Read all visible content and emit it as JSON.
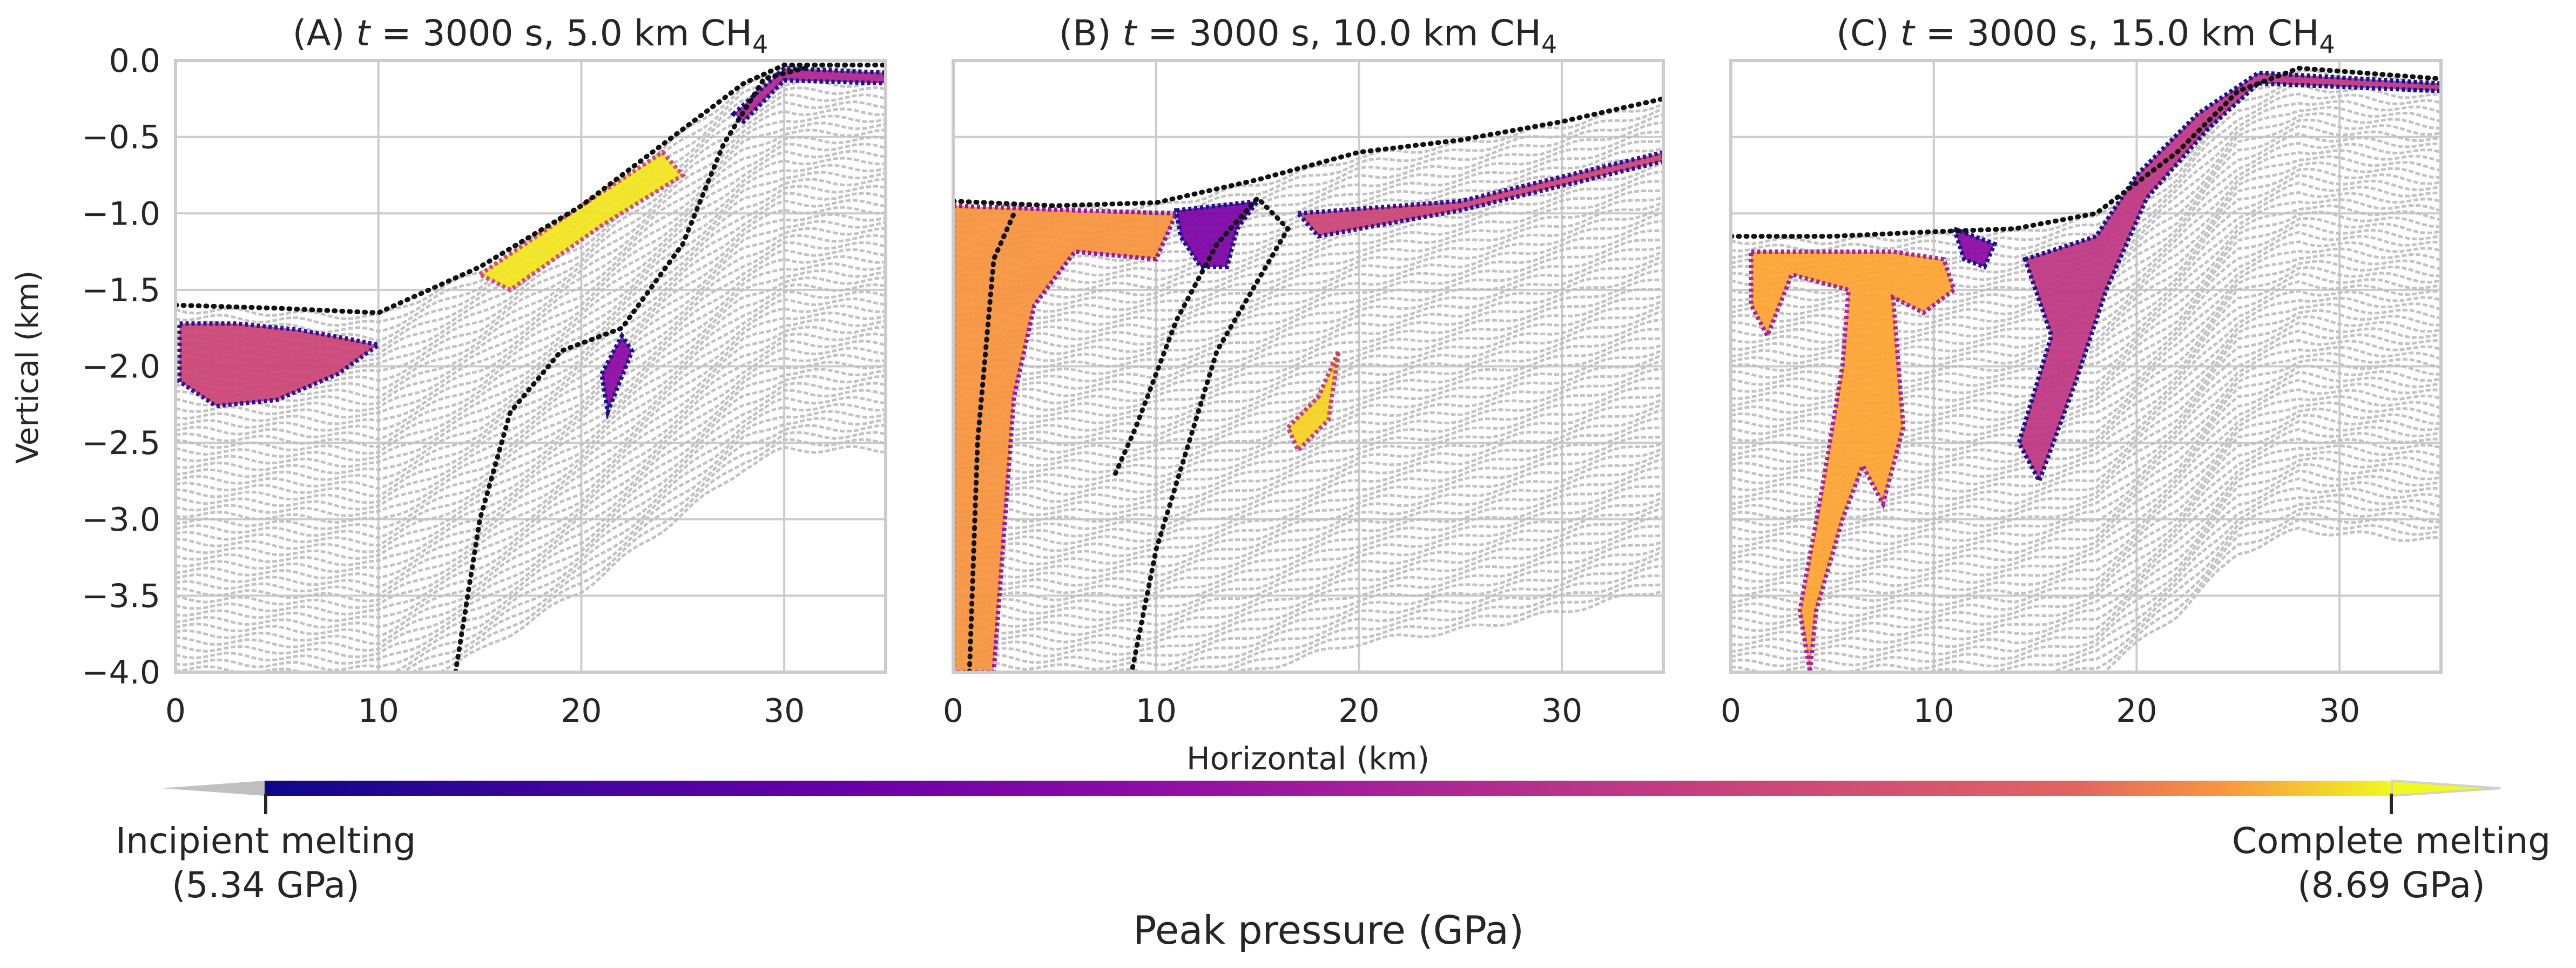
{
  "chart_data": {
    "type": "scatter",
    "figure_description_note": "Three-panel hydrocode simulation snapshots; particle (tracer) positions coloured by peak pressure.",
    "shared": {
      "xlabel": "Horizontal (km)",
      "ylabel": "Vertical (km)",
      "xlim": [
        0,
        35
      ],
      "ylim": [
        -4.0,
        0.0
      ],
      "x_ticks": [
        0,
        10,
        20,
        30
      ],
      "x_tick_labels": [
        "0",
        "10",
        "20",
        "30"
      ],
      "y_ticks": [
        0.0,
        -0.5,
        -1.0,
        -1.5,
        -2.0,
        -2.5,
        -3.0,
        -3.5,
        -4.0
      ],
      "y_tick_labels": [
        "0.0",
        "−0.5",
        "−1.0",
        "−1.5",
        "−2.0",
        "−2.5",
        "−3.0",
        "−3.5",
        "−4.0"
      ],
      "grid": true
    },
    "panels": [
      {
        "id": "A",
        "title": "(A) t = 3000 s, 5.0 km CH4",
        "title_prefix": "(A) ",
        "title_t": "t",
        "title_mid": " = 3000 s, 5.0 km CH",
        "title_sub": "4",
        "surface_boundary": [
          [
            0,
            -1.6
          ],
          [
            5,
            -1.62
          ],
          [
            10,
            -1.65
          ],
          [
            15,
            -1.35
          ],
          [
            20,
            -0.95
          ],
          [
            25,
            -0.45
          ],
          [
            28,
            -0.15
          ],
          [
            30,
            -0.03
          ],
          [
            35,
            -0.03
          ]
        ],
        "interface_boundary": [
          [
            13.8,
            -4.0
          ],
          [
            15,
            -3.0
          ],
          [
            16.5,
            -2.3
          ],
          [
            19,
            -1.9
          ],
          [
            22,
            -1.75
          ],
          [
            25,
            -1.2
          ],
          [
            27,
            -0.55
          ],
          [
            29,
            -0.12
          ],
          [
            31,
            -0.05
          ]
        ],
        "melt_regions": [
          {
            "polygon": [
              [
                0.2,
                -1.72
              ],
              [
                3,
                -1.72
              ],
              [
                6,
                -1.76
              ],
              [
                8.5,
                -1.82
              ],
              [
                10,
                -1.86
              ],
              [
                8,
                -2.05
              ],
              [
                5,
                -2.22
              ],
              [
                2,
                -2.26
              ],
              [
                0.2,
                -2.1
              ]
            ],
            "mean_pressure_frac": 0.5
          },
          {
            "polygon": [
              [
                15,
                -1.4
              ],
              [
                20,
                -0.95
              ],
              [
                24,
                -0.6
              ],
              [
                25,
                -0.75
              ],
              [
                21,
                -1.08
              ],
              [
                16.5,
                -1.5
              ]
            ],
            "mean_pressure_frac": 0.95
          },
          {
            "polygon": [
              [
                21,
                -2.05
              ],
              [
                22,
                -1.8
              ],
              [
                22.5,
                -1.9
              ],
              [
                21.3,
                -2.3
              ]
            ],
            "mean_pressure_frac": 0.3
          },
          {
            "polygon": [
              [
                27.5,
                -0.35
              ],
              [
                30,
                -0.05
              ],
              [
                35,
                -0.08
              ],
              [
                35,
                -0.15
              ],
              [
                30,
                -0.13
              ],
              [
                28,
                -0.4
              ]
            ],
            "mean_pressure_frac": 0.4
          }
        ]
      },
      {
        "id": "B",
        "title": "(B) t = 3000 s, 10.0 km CH4",
        "title_prefix": "(B) ",
        "title_t": "t",
        "title_mid": " = 3000 s, 10.0 km CH",
        "title_sub": "4",
        "surface_boundary": [
          [
            0,
            -0.92
          ],
          [
            5,
            -0.95
          ],
          [
            10,
            -0.93
          ],
          [
            15,
            -0.78
          ],
          [
            20,
            -0.6
          ],
          [
            25,
            -0.52
          ],
          [
            30,
            -0.4
          ],
          [
            35,
            -0.25
          ]
        ],
        "interface_boundary": [
          [
            8,
            -2.7
          ],
          [
            9,
            -2.4
          ],
          [
            11,
            -1.7
          ],
          [
            13,
            -1.2
          ],
          [
            15,
            -0.9
          ],
          [
            16.5,
            -1.1
          ],
          [
            13,
            -1.9
          ],
          [
            10,
            -3.2
          ],
          [
            8.8,
            -4.0
          ]
        ],
        "interface_boundary_2": [
          [
            0.8,
            -4.0
          ],
          [
            1.2,
            -2.5
          ],
          [
            2,
            -1.3
          ],
          [
            3,
            -1.0
          ]
        ],
        "melt_regions": [
          {
            "polygon": [
              [
                0,
                -0.95
              ],
              [
                6,
                -0.98
              ],
              [
                11,
                -1.0
              ],
              [
                10,
                -1.3
              ],
              [
                6,
                -1.25
              ],
              [
                4,
                -1.6
              ],
              [
                3,
                -2.2
              ],
              [
                2,
                -4.0
              ],
              [
                0,
                -4.0
              ]
            ],
            "mean_pressure_frac": 0.75
          },
          {
            "polygon": [
              [
                11,
                -0.98
              ],
              [
                15,
                -0.92
              ],
              [
                14,
                -1.1
              ],
              [
                13.5,
                -1.35
              ],
              [
                12.2,
                -1.35
              ],
              [
                11.2,
                -1.15
              ]
            ],
            "mean_pressure_frac": 0.25
          },
          {
            "polygon": [
              [
                17,
                -1.0
              ],
              [
                25,
                -0.92
              ],
              [
                35,
                -0.6
              ],
              [
                35,
                -0.66
              ],
              [
                25,
                -0.98
              ],
              [
                18,
                -1.15
              ]
            ],
            "mean_pressure_frac": 0.5
          },
          {
            "polygon": [
              [
                16.5,
                -2.4
              ],
              [
                18,
                -2.2
              ],
              [
                19,
                -1.9
              ],
              [
                18.5,
                -2.35
              ],
              [
                17,
                -2.55
              ]
            ],
            "mean_pressure_frac": 0.9
          }
        ]
      },
      {
        "id": "C",
        "title": "(C) t = 3000 s, 15.0 km CH4",
        "title_prefix": "(C) ",
        "title_t": "t",
        "title_mid": " = 3000 s, 15.0 km CH",
        "title_sub": "4",
        "surface_boundary": [
          [
            0,
            -1.15
          ],
          [
            5,
            -1.15
          ],
          [
            10,
            -1.12
          ],
          [
            14,
            -1.1
          ],
          [
            18,
            -1.0
          ],
          [
            22,
            -0.6
          ],
          [
            25,
            -0.2
          ],
          [
            28,
            -0.05
          ],
          [
            30,
            -0.07
          ],
          [
            35,
            -0.12
          ]
        ],
        "interface_boundary": [],
        "melt_regions": [
          {
            "polygon": [
              [
                1,
                -1.25
              ],
              [
                8,
                -1.25
              ],
              [
                10.5,
                -1.3
              ],
              [
                11,
                -1.5
              ],
              [
                9.5,
                -1.65
              ],
              [
                8,
                -1.55
              ],
              [
                8.5,
                -2.4
              ],
              [
                7.5,
                -2.9
              ],
              [
                6.5,
                -2.65
              ],
              [
                5.5,
                -3.0
              ],
              [
                4.2,
                -3.6
              ],
              [
                3.9,
                -4.0
              ],
              [
                3.4,
                -3.6
              ],
              [
                4.5,
                -2.8
              ],
              [
                5.5,
                -2.0
              ],
              [
                5.8,
                -1.5
              ],
              [
                3,
                -1.4
              ],
              [
                1.8,
                -1.8
              ],
              [
                1,
                -1.6
              ]
            ],
            "mean_pressure_frac": 0.8
          },
          {
            "polygon": [
              [
                11,
                -1.1
              ],
              [
                13,
                -1.2
              ],
              [
                12.5,
                -1.35
              ],
              [
                11.5,
                -1.3
              ]
            ],
            "mean_pressure_frac": 0.3
          },
          {
            "polygon": [
              [
                14.5,
                -1.3
              ],
              [
                18,
                -1.15
              ],
              [
                20,
                -0.75
              ],
              [
                23,
                -0.35
              ],
              [
                26,
                -0.08
              ],
              [
                35,
                -0.15
              ],
              [
                35,
                -0.2
              ],
              [
                26,
                -0.15
              ],
              [
                23.5,
                -0.45
              ],
              [
                20.5,
                -0.9
              ],
              [
                18.5,
                -1.5
              ],
              [
                17,
                -2.1
              ],
              [
                15.2,
                -2.75
              ],
              [
                14.2,
                -2.5
              ],
              [
                15.8,
                -1.8
              ]
            ],
            "mean_pressure_frac": 0.45
          }
        ]
      }
    ],
    "colorbar": {
      "colormap": "plasma",
      "label": "Peak pressure (GPa)",
      "vmin": 5.34,
      "vmax": 8.69,
      "min_label_line1": "Incipient melting",
      "min_label_line2": "(5.34 GPa)",
      "max_label_line1": "Complete melting",
      "max_label_line2": "(8.69 GPa)",
      "extend": "both",
      "under_color": "#c0c0c0",
      "over_color": "#f0f921"
    },
    "colors": {
      "unmelted_particles": "#c0c0c0",
      "boundary_line": "#111111",
      "axis_frame": "#cccccc",
      "grid": "#cccccc",
      "text": "#262626"
    }
  }
}
